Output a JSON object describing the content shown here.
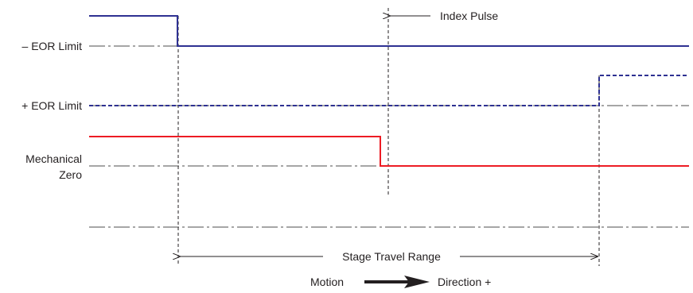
{
  "labels": {
    "neg_eor": "– EOR Limit",
    "pos_eor": "+ EOR Limit",
    "mech_zero_line1": "Mechanical",
    "mech_zero_line2": "Zero",
    "index_pulse": "Index Pulse",
    "travel_range": "Stage Travel Range",
    "motion": "Motion",
    "direction": "Direction +"
  },
  "colors": {
    "neg_eor_signal": "#2e3192",
    "pos_eor_signal": "#2e3192",
    "mech_zero_signal": "#ed1c24",
    "reference_line": "#4d4d4d",
    "text": "#231f20"
  }
}
